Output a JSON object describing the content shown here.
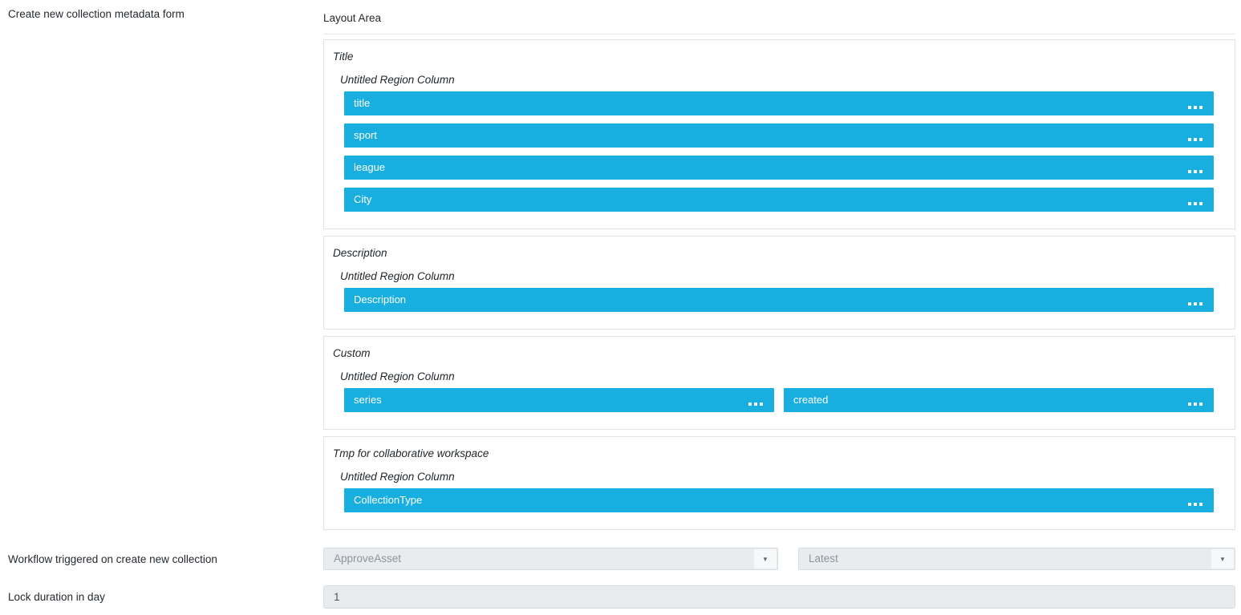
{
  "labels": {
    "form": "Create new collection metadata form",
    "layout_area": "Layout Area"
  },
  "layout_area": {
    "sections": [
      {
        "title": "Title",
        "region_label": "Untitled Region Column",
        "columns": 1,
        "fields": [
          "title",
          "sport",
          "league",
          "City"
        ]
      },
      {
        "title": "Description",
        "region_label": "Untitled Region Column",
        "columns": 1,
        "fields": [
          "Description"
        ]
      },
      {
        "title": "Custom",
        "region_label": "Untitled Region Column",
        "columns": 2,
        "fields": [
          "series",
          "created"
        ]
      },
      {
        "title": "Tmp for collaborative workspace",
        "region_label": "Untitled Region Column",
        "columns": 1,
        "fields": [
          "CollectionType"
        ]
      }
    ]
  },
  "workflow": {
    "label": "Workflow triggered on create new collection",
    "workflow_select": {
      "value": "ApproveAsset",
      "icon": "chevron-down"
    },
    "version_select": {
      "value": "Latest",
      "icon": "chevron-down"
    }
  },
  "lock_duration": {
    "label": "Lock duration in day",
    "value": "1"
  },
  "colors": {
    "field_bar_blue": "#18aee0",
    "field_bar_text": "#ffffff",
    "section_border": "#e3e3e3",
    "select_bg": "#e9ecef",
    "select_text": "#8b949b",
    "input_text": "#4f575e"
  }
}
